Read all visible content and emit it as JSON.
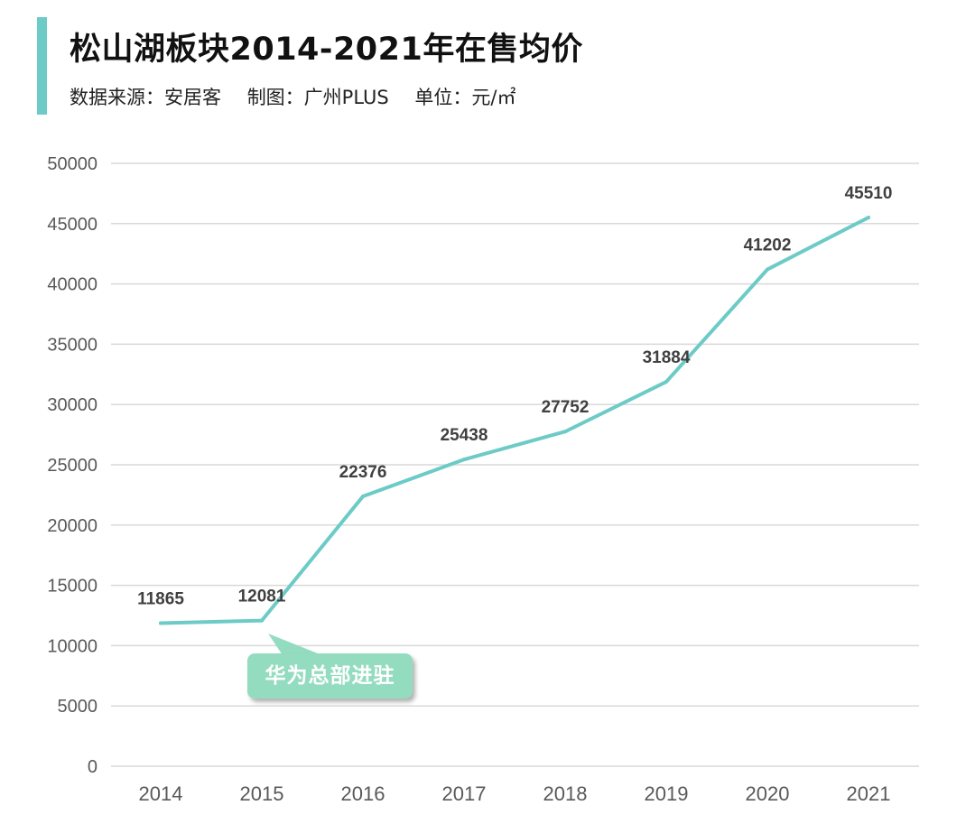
{
  "header": {
    "title": "松山湖板块2014-2021年在售均价",
    "source": "数据来源：安居客",
    "maker": "制图：广州PLUS",
    "unit": "单位：元/㎡"
  },
  "colors": {
    "accent": "#6ccbc6",
    "line": "#6ccbc6",
    "grid": "#d9d9d9",
    "axis_text": "#595959",
    "value_label": "#404040",
    "callout": "#94dcc0"
  },
  "annotation": {
    "text": "华为总部进驻",
    "anchor_year": "2015"
  },
  "chart_data": {
    "type": "line",
    "title": "松山湖板块2014-2021年在售均价",
    "xlabel": "",
    "ylabel": "",
    "categories": [
      "2014",
      "2015",
      "2016",
      "2017",
      "2018",
      "2019",
      "2020",
      "2021"
    ],
    "values": [
      11865,
      12081,
      22376,
      25438,
      27752,
      31884,
      41202,
      45510
    ],
    "ylim": [
      0,
      50000
    ],
    "yticks": [
      0,
      5000,
      10000,
      15000,
      20000,
      25000,
      30000,
      35000,
      40000,
      45000,
      50000
    ],
    "grid": true,
    "legend": "none",
    "data_labels": true
  }
}
